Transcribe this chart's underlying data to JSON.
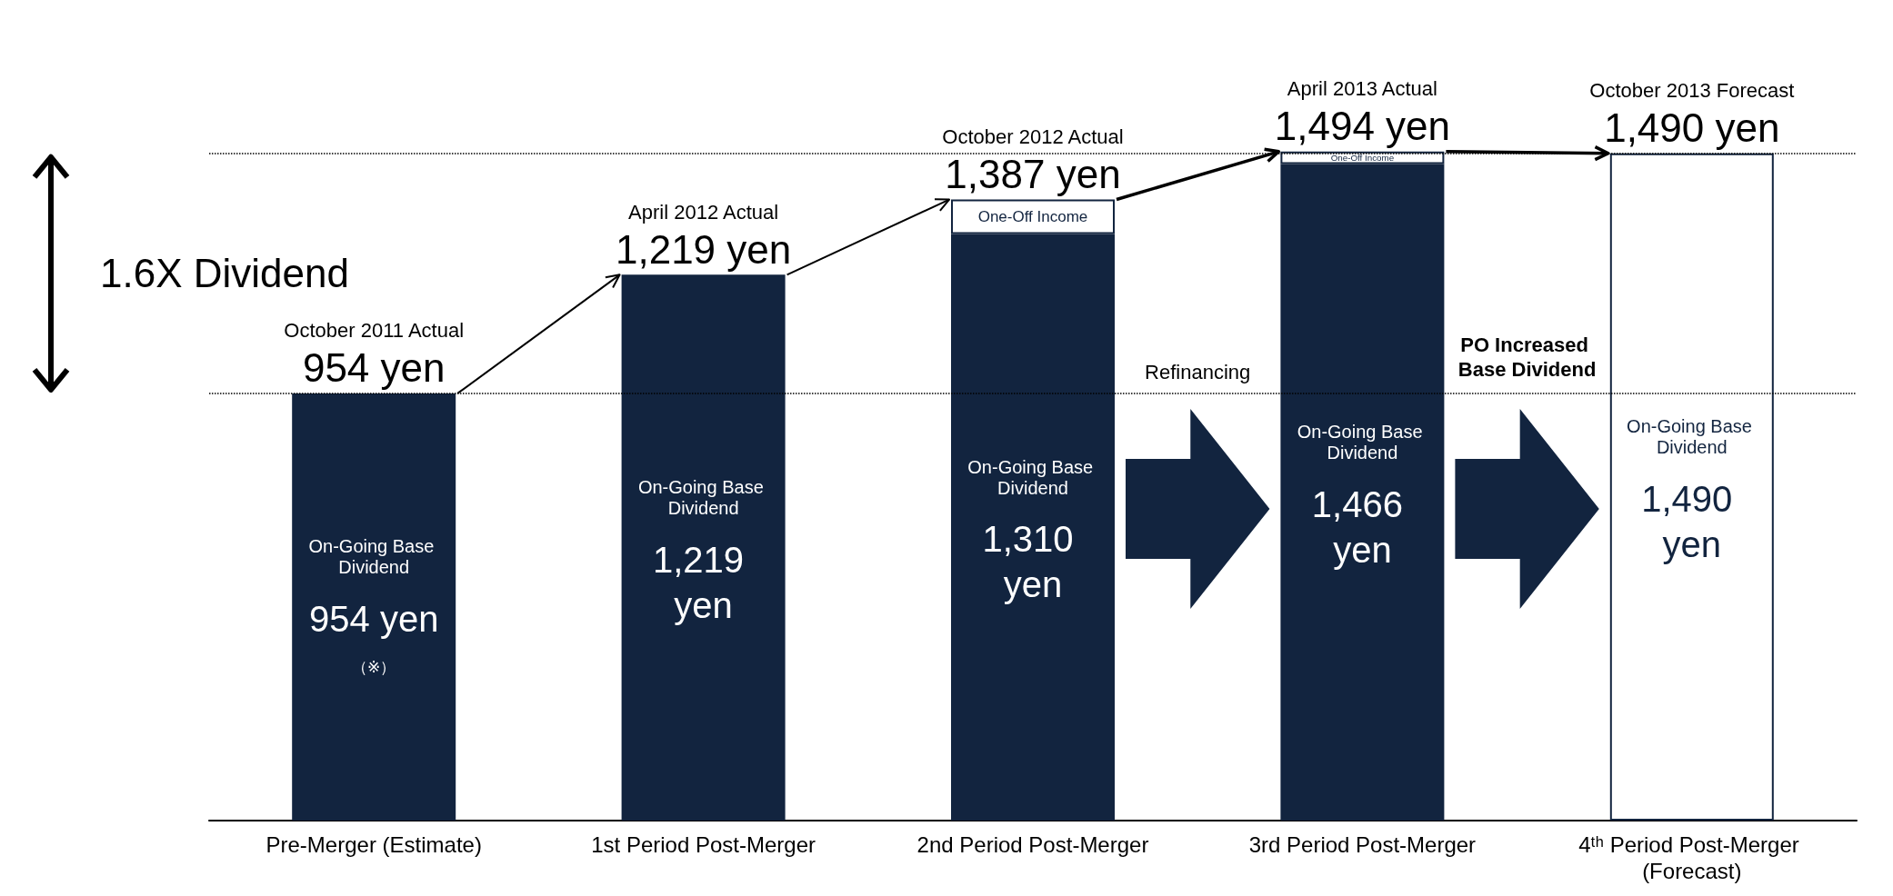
{
  "chart_data": {
    "type": "bar",
    "stacked": true,
    "categories": [
      "Pre-Merger (Estimate)",
      "1st Period Post-Merger",
      "2nd Period Post-Merger",
      "3rd Period Post-Merger",
      "4ᵗʰ Period Post-Merger (Forecast)"
    ],
    "series": [
      {
        "name": "On-Going Base Dividend",
        "color": "#12243f",
        "colors": [
          "#12243f",
          "#12243f",
          "#12243f",
          "#12243f",
          "#ffffff"
        ],
        "values": [
          954,
          1219,
          1310,
          1466,
          1490
        ],
        "value_labels": [
          "954 yen",
          "1,219 yen",
          "1,310 yen",
          "1,466 yen",
          "1,490 yen"
        ]
      },
      {
        "name": "One-Off Income",
        "color": "#ffffff",
        "values": [
          null,
          null,
          77,
          28,
          null
        ]
      }
    ],
    "totals": [
      "954 yen",
      "1,219 yen",
      "1,387 yen",
      "1,494 yen",
      "1,490 yen"
    ],
    "annotations": [
      {
        "text": "October 2011 Actual",
        "x": "Pre-Merger (Estimate)",
        "y": 954
      },
      {
        "text": "April 2012 Actual",
        "x": "1st Period Post-Merger",
        "y": 1219
      },
      {
        "text": "October 2012 Actual",
        "x": "2nd Period Post-Merger",
        "y": 1387
      },
      {
        "text": "April 2013 Actual",
        "x": "3rd Period Post-Merger",
        "y": 1494
      },
      {
        "text": "October 2013 Forecast",
        "x": "4ᵗʰ Period Post-Merger (Forecast)",
        "y": 1490
      },
      "1.6X Dividend",
      "Refinancing",
      "PO Increased Base Dividend",
      "（※）"
    ],
    "ref_lines": [
      {
        "axis": "y",
        "value": 954,
        "color": "#000000",
        "line_style": "dotted"
      },
      {
        "axis": "y",
        "value": 1490,
        "color": "#000000",
        "line_style": "dotted"
      }
    ]
  }
}
